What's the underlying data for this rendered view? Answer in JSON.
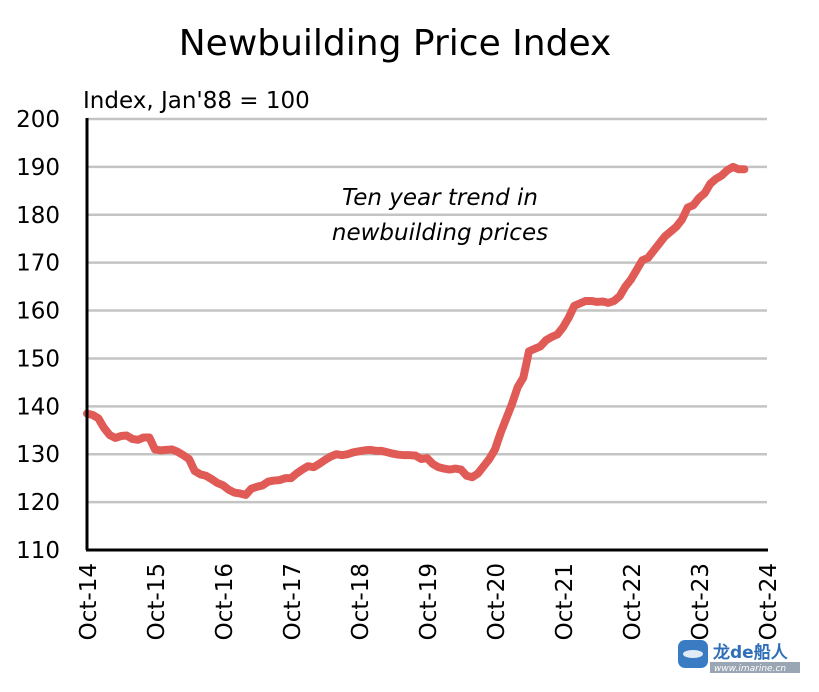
{
  "chart_data": {
    "type": "line",
    "title": "Newbuilding Price Index",
    "ylabel": "Index, Jan'88 = 100",
    "xlabel": "",
    "annotation": [
      "Ten year trend in",
      "newbuilding prices"
    ],
    "ylim": [
      110,
      200
    ],
    "yticks": [
      110,
      120,
      130,
      140,
      150,
      160,
      170,
      180,
      190,
      200
    ],
    "ytick_labels": [
      "110",
      "120",
      "130",
      "140",
      "150",
      "160",
      "170",
      "180",
      "190",
      "200"
    ],
    "x_tick_labels": [
      "Oct-14",
      "Oct-15",
      "Oct-16",
      "Oct-17",
      "Oct-18",
      "Oct-19",
      "Oct-20",
      "Oct-21",
      "Oct-22",
      "Oct-23",
      "Oct-24"
    ],
    "x_range_months": [
      0,
      120
    ],
    "grid": "horizontal",
    "line_color": "#e05a56",
    "series": [
      {
        "name": "Newbuilding Price Index",
        "x_unit": "months since Oct-14",
        "values": [
          138.5,
          138.2,
          137.5,
          135.5,
          134.0,
          133.4,
          133.8,
          133.9,
          133.2,
          133.0,
          133.5,
          133.5,
          131.0,
          130.8,
          130.9,
          131.0,
          130.5,
          129.8,
          129.0,
          126.5,
          125.8,
          125.5,
          124.8,
          124.0,
          123.5,
          122.6,
          122.0,
          121.8,
          121.5,
          122.8,
          123.2,
          123.5,
          124.3,
          124.5,
          124.6,
          125.0,
          125.0,
          126.0,
          126.8,
          127.5,
          127.3,
          128.0,
          128.8,
          129.5,
          130.0,
          129.8,
          130.0,
          130.4,
          130.6,
          130.8,
          130.9,
          130.7,
          130.7,
          130.4,
          130.1,
          129.9,
          129.8,
          129.8,
          129.7,
          129.0,
          129.2,
          128.0,
          127.3,
          127.0,
          126.8,
          127.0,
          126.8,
          125.5,
          125.2,
          126.0,
          127.5,
          129.0,
          131.0,
          134.5,
          137.5,
          140.5,
          144.0,
          146.0,
          151.5,
          152.0,
          152.5,
          153.8,
          154.5,
          155.0,
          156.5,
          158.5,
          161.0,
          161.5,
          162.0,
          162.0,
          161.8,
          161.9,
          161.6,
          162.0,
          163.0,
          165.0,
          166.5,
          168.5,
          170.5,
          171.0,
          172.5,
          174.0,
          175.5,
          176.5,
          177.5,
          179.0,
          181.5,
          182.0,
          183.5,
          184.5,
          186.5,
          187.5,
          188.2,
          189.3,
          190.0,
          189.5,
          189.5
        ]
      }
    ]
  },
  "watermark": {
    "brand": "龙de船人",
    "url": "www.imarine.cn"
  }
}
